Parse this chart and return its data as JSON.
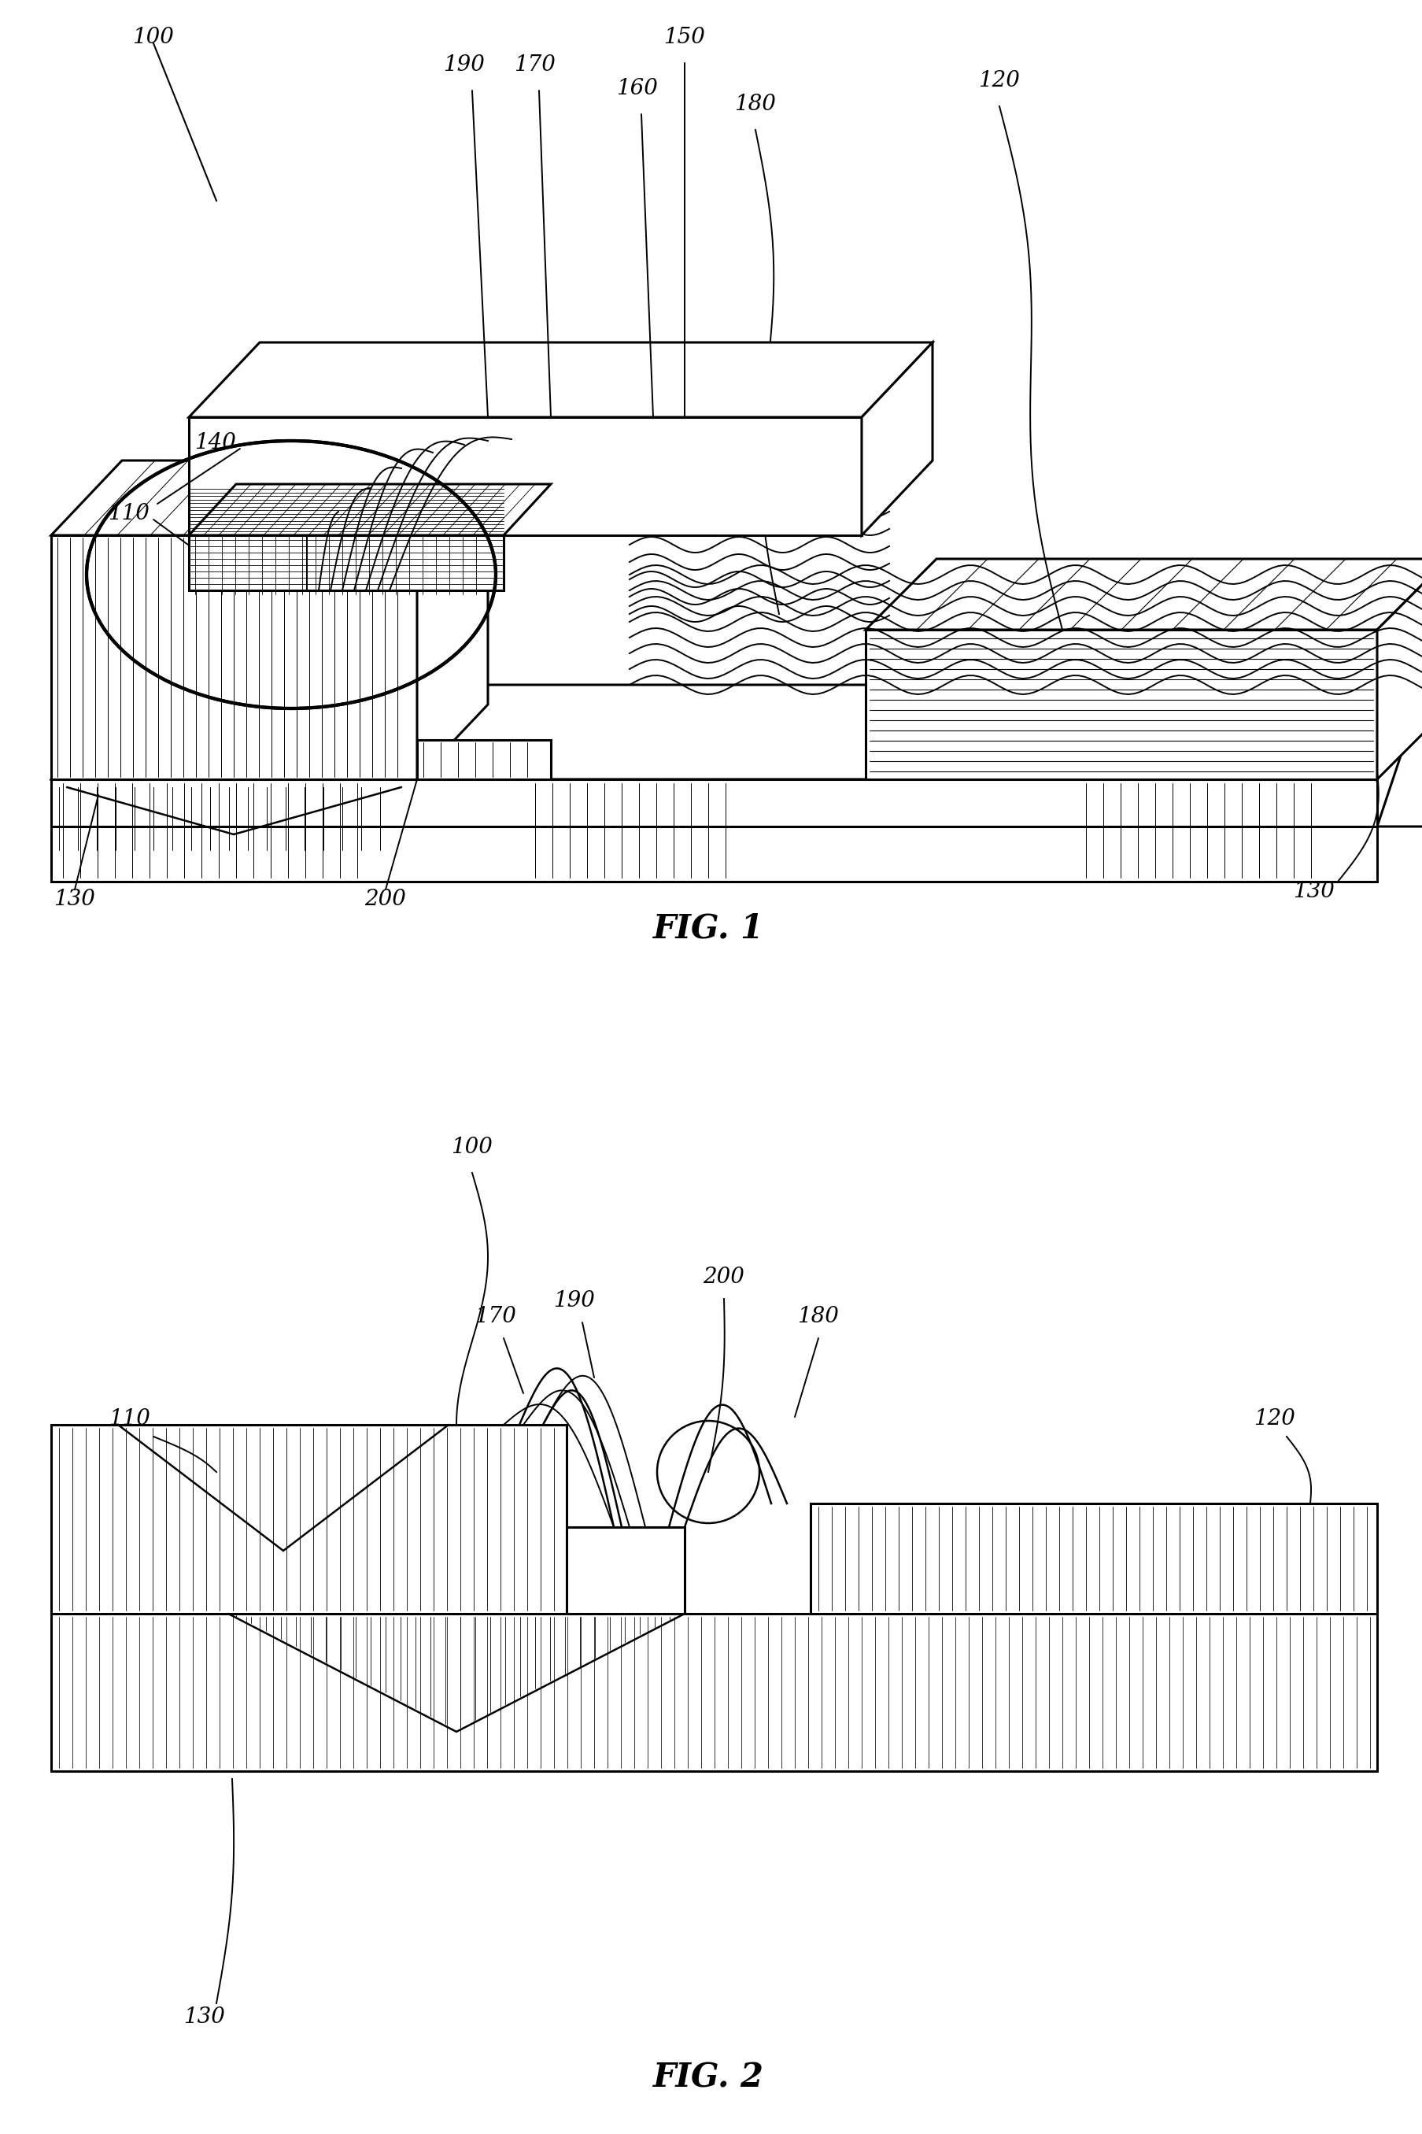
{
  "bg_color": "#ffffff",
  "line_color": "#000000",
  "label_fontsize": 20,
  "fig_title_fontsize": 30,
  "fig1_title": "FIG. 1",
  "fig2_title": "FIG. 2"
}
